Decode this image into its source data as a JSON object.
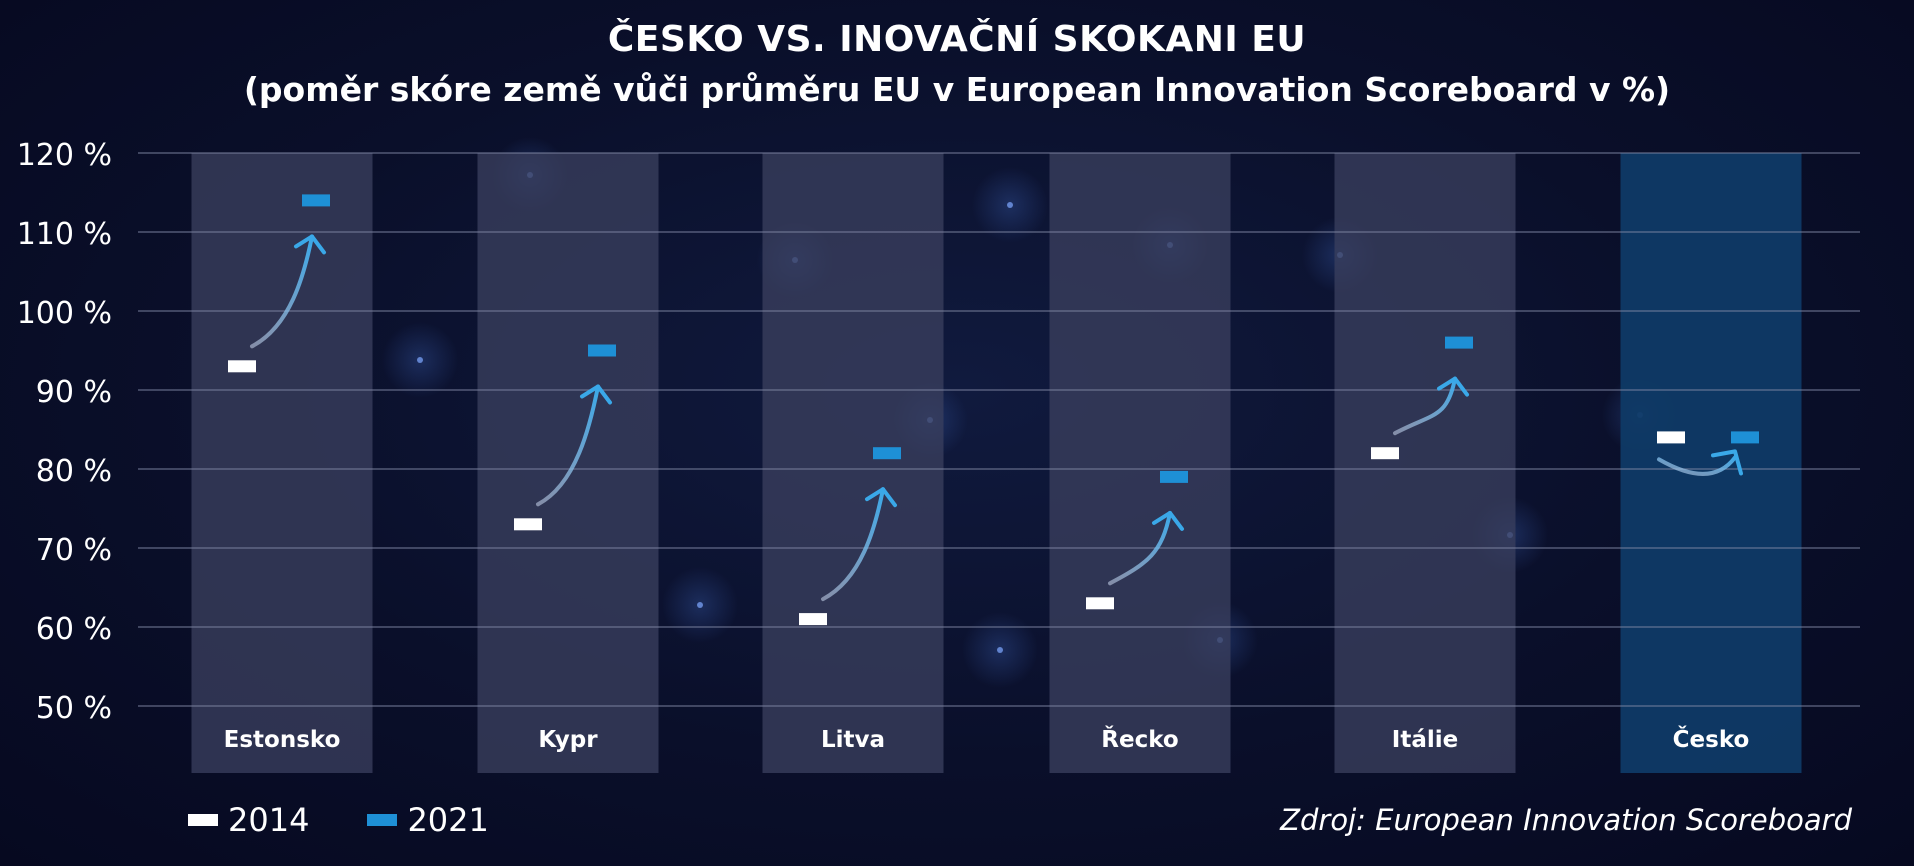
{
  "header": {
    "title": "ČESKO VS. INOVAČNÍ SKOKANI EU",
    "subtitle": "(poměr skóre země vůči průměru EU v European Innovation Scoreboard v %)"
  },
  "source": "Zdroj: European Innovation Scoreboard",
  "colors": {
    "background": "#0a0f2a",
    "column": "#3a3f5e",
    "highlight_column": "#0f3a66",
    "marker_2014": "#ffffff",
    "marker_2021": "#1e90d6",
    "arrow": "#3aa8e8",
    "grid": "#7f86a3"
  },
  "legend": [
    {
      "label": "2014",
      "color": "#ffffff"
    },
    {
      "label": "2021",
      "color": "#1e90d6"
    }
  ],
  "chart_data": {
    "type": "scatter",
    "title": "ČESKO VS. INOVAČNÍ SKOKANI EU",
    "subtitle": "(poměr skóre země vůči průměru EU v European Innovation Scoreboard v %)",
    "categories": [
      "Estonsko",
      "Kypr",
      "Litva",
      "Řecko",
      "Itálie",
      "Česko"
    ],
    "highlight_category": "Česko",
    "series": [
      {
        "name": "2014",
        "values": [
          93,
          73,
          61,
          63,
          82,
          84
        ]
      },
      {
        "name": "2021",
        "values": [
          114,
          95,
          82,
          79,
          96,
          84
        ]
      }
    ],
    "ylim": [
      50,
      120
    ],
    "yticks": [
      "50 %",
      "60 %",
      "70 %",
      "80 %",
      "90 %",
      "100 %",
      "110 %",
      "120 %"
    ],
    "ytick_values": [
      50,
      60,
      70,
      80,
      90,
      100,
      110,
      120
    ],
    "grid": true,
    "legend_position": "bottom-left"
  }
}
